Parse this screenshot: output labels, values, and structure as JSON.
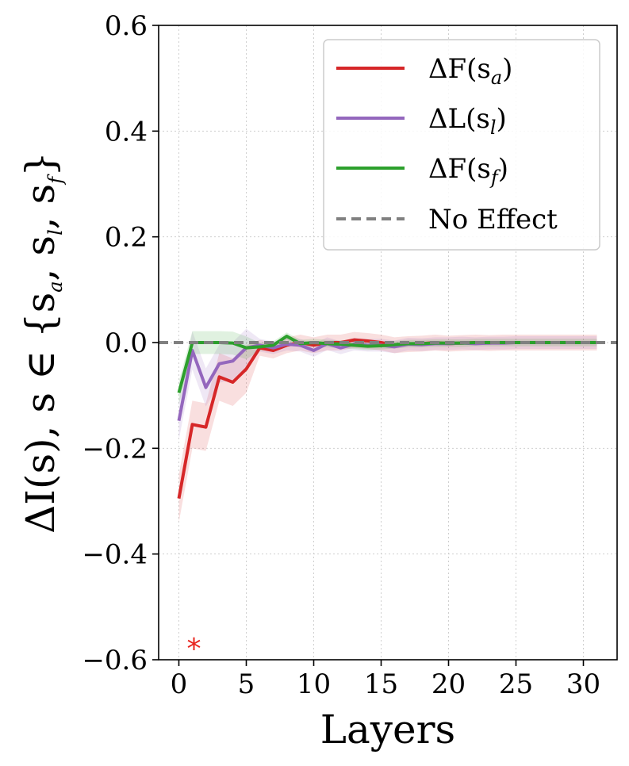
{
  "chart_data": {
    "type": "line",
    "xlabel": "Layers",
    "ylabel": "ΔI(s),  s ∈ {s_a, s_l, s_f}",
    "ylabel_parts": {
      "a": "ΔI(s),  s ∈ {s",
      "b": "a",
      "c": ", s",
      "d": "l",
      "e": ", s",
      "f": "f",
      "g": "}"
    },
    "xlim": [
      -1.5,
      32.5
    ],
    "ylim": [
      -0.6,
      0.6
    ],
    "xticks": [
      0,
      5,
      10,
      15,
      20,
      25,
      30
    ],
    "xtick_labels": [
      "0",
      "5",
      "10",
      "15",
      "20",
      "25",
      "30"
    ],
    "yticks": [
      -0.6,
      -0.4,
      -0.2,
      0.0,
      0.2,
      0.4,
      0.6
    ],
    "ytick_labels": [
      "−0.6",
      "−0.4",
      "−0.2",
      "0.0",
      "0.2",
      "0.4",
      "0.6"
    ],
    "grid": true,
    "legend_position": "top-right",
    "annotation": {
      "text": "*",
      "x": 1,
      "y": -0.555,
      "color": "#e8241e"
    },
    "series": [
      {
        "name": "ΔF(s_a)",
        "legend": {
          "main": "ΔF(s",
          "sub": "a",
          "end": ")"
        },
        "color": "#d62728",
        "band": 0.025,
        "x": [
          0,
          1,
          2,
          3,
          4,
          5,
          6,
          7,
          8,
          9,
          10,
          11,
          12,
          13,
          14,
          15,
          16,
          17,
          18,
          19,
          20,
          21,
          22,
          23,
          24,
          25,
          26,
          27,
          28,
          29,
          30,
          31
        ],
        "y": [
          -0.295,
          -0.155,
          -0.16,
          -0.065,
          -0.075,
          -0.05,
          -0.01,
          -0.015,
          -0.005,
          0.0,
          -0.005,
          0.0,
          0.0,
          0.005,
          0.003,
          0.0,
          -0.005,
          -0.003,
          -0.002,
          0.0,
          -0.002,
          -0.001,
          0.0,
          -0.001,
          0.0,
          0.0,
          0.0,
          0.0,
          0.0,
          0.0,
          0.0,
          0.0
        ]
      },
      {
        "name": "ΔL(s_l)",
        "legend": {
          "main": "ΔL(s",
          "sub": "l",
          "end": ")"
        },
        "color": "#9467bd",
        "band": 0.02,
        "x": [
          0,
          1,
          2,
          3,
          4,
          5,
          6,
          7,
          8,
          9,
          10,
          11,
          12,
          13,
          14,
          15,
          16,
          17,
          18,
          19,
          20,
          21,
          22,
          23,
          24,
          25,
          26,
          27,
          28,
          29,
          30,
          31
        ],
        "y": [
          -0.148,
          -0.015,
          -0.085,
          -0.04,
          -0.035,
          -0.01,
          -0.005,
          -0.01,
          -0.003,
          -0.005,
          -0.015,
          -0.002,
          -0.01,
          -0.003,
          -0.005,
          -0.005,
          -0.008,
          -0.003,
          -0.004,
          -0.002,
          -0.002,
          -0.001,
          -0.002,
          -0.001,
          -0.001,
          0.0,
          0.0,
          0.0,
          0.0,
          0.0,
          0.0,
          0.0
        ]
      },
      {
        "name": "ΔF(s_f)",
        "legend": {
          "main": "ΔF(s",
          "sub": "f",
          "end": ")"
        },
        "color": "#2ca02c",
        "band": 0.012,
        "x": [
          0,
          1,
          2,
          3,
          4,
          5,
          6,
          7,
          8,
          9,
          10,
          11,
          12,
          13,
          14,
          15,
          16,
          17,
          18,
          19,
          20,
          21,
          22,
          23,
          24,
          25,
          26,
          27,
          28,
          29,
          30,
          31
        ],
        "y": [
          -0.095,
          0.0,
          0.0,
          0.0,
          -0.001,
          -0.01,
          -0.008,
          -0.005,
          0.012,
          -0.002,
          0.0,
          -0.002,
          -0.003,
          -0.005,
          -0.007,
          -0.006,
          -0.004,
          -0.002,
          -0.002,
          -0.001,
          -0.001,
          -0.001,
          0.0,
          0.0,
          0.0,
          0.0,
          0.0,
          0.0,
          0.0,
          0.0,
          0.0,
          0.0
        ]
      },
      {
        "name": "No Effect",
        "legend": {
          "main": "No Effect",
          "sub": "",
          "end": ""
        },
        "color": "#808080",
        "dashed": true,
        "y_const": 0.0
      }
    ]
  }
}
